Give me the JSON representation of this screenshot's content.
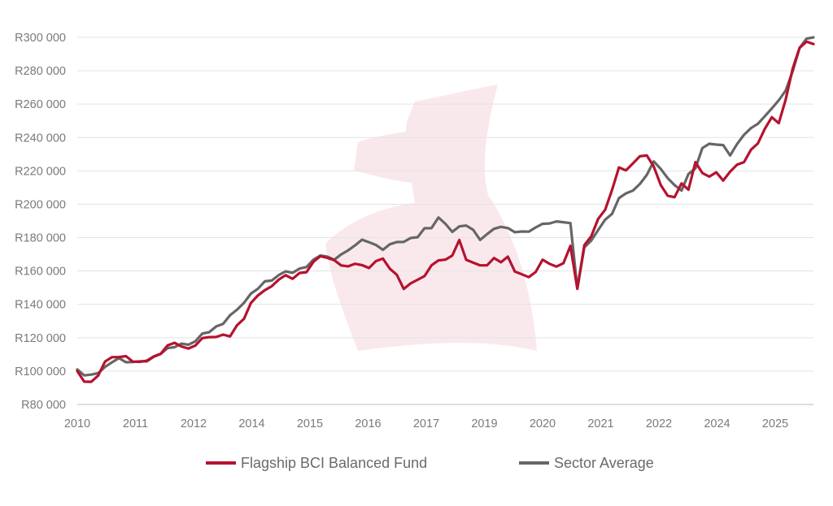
{
  "chart_data": {
    "type": "line",
    "ylim": [
      80000,
      300000
    ],
    "y_ticks": [
      80000,
      100000,
      120000,
      140000,
      160000,
      180000,
      200000,
      220000,
      240000,
      260000,
      280000,
      300000
    ],
    "y_tick_labels": [
      "R80 000",
      "R100 000",
      "R120 000",
      "R140 000",
      "R160 000",
      "R180 000",
      "R200 000",
      "R220 000",
      "R240 000",
      "R260 000",
      "R280 000",
      "R300 000"
    ],
    "x_tick_labels": [
      "2010",
      "2011",
      "2012",
      "2014",
      "2015",
      "2016",
      "2017",
      "2019",
      "2020",
      "2021",
      "2022",
      "2024",
      "2025"
    ],
    "grid": true,
    "legend_position": "bottom",
    "x": [
      0,
      2,
      4,
      6,
      8,
      10,
      12,
      14,
      16,
      18,
      20,
      22,
      24,
      26,
      28,
      30,
      32,
      34,
      36,
      38,
      40,
      42,
      44,
      46,
      48,
      50,
      52,
      54,
      56,
      58,
      60,
      62,
      64,
      66,
      68,
      70,
      72,
      74,
      76,
      78,
      80,
      82,
      84,
      86,
      88,
      90,
      92,
      94,
      96,
      98,
      100,
      102,
      104,
      106,
      108,
      110,
      112,
      114,
      116,
      118,
      120,
      122,
      124,
      126,
      128,
      130,
      132,
      134,
      136,
      138,
      140,
      142,
      144,
      146,
      148,
      150,
      152,
      154,
      156,
      158,
      160,
      162,
      164,
      166,
      168,
      170,
      172,
      174,
      176,
      178,
      180,
      182,
      184,
      186,
      188,
      190,
      192
    ],
    "series": [
      {
        "name": "Flagship BCI Balanced Fund",
        "color": "#b5122f",
        "values": [
          100000,
          94000,
          93000,
          98000,
          105000,
          109000,
          108000,
          109000,
          106000,
          105000,
          107000,
          108000,
          111000,
          115000,
          117000,
          115000,
          113000,
          116000,
          119000,
          121000,
          120000,
          122000,
          121000,
          127000,
          132000,
          140000,
          146000,
          148000,
          151000,
          155000,
          157000,
          156000,
          158000,
          160000,
          165000,
          169000,
          168000,
          166000,
          164000,
          162000,
          165000,
          163000,
          162000,
          166000,
          167000,
          162000,
          157000,
          150000,
          152000,
          155000,
          157000,
          163000,
          167000,
          166000,
          170000,
          178000,
          167000,
          165000,
          163000,
          164000,
          167000,
          166000,
          168000,
          160000,
          158000,
          156000,
          160000,
          166000,
          165000,
          162000,
          165000,
          175000,
          149000,
          176000,
          180000,
          192000,
          196000,
          209000,
          222000,
          220000,
          225000,
          228000,
          230000,
          222000,
          212000,
          205000,
          204000,
          213000,
          208000,
          226000,
          218000,
          217000,
          219000,
          214000,
          220000,
          223000,
          226000
        ],
        "values_tail": [
          232000,
          237000,
          245000,
          252000,
          249000,
          262000,
          282000,
          293000,
          298000,
          296000
        ]
      },
      {
        "name": "Sector Average",
        "color": "#666666",
        "values": [
          101000,
          97000,
          98000,
          99000,
          102000,
          106000,
          107000,
          106000,
          105000,
          106000,
          106000,
          108000,
          111000,
          113000,
          115000,
          116000,
          116000,
          118000,
          122000,
          124000,
          126000,
          129000,
          133000,
          137000,
          141000,
          146000,
          150000,
          153000,
          155000,
          157000,
          160000,
          159000,
          161000,
          163000,
          166000,
          170000,
          168000,
          167000,
          170000,
          172000,
          176000,
          178000,
          178000,
          175000,
          173000,
          176000,
          177000,
          178000,
          179000,
          181000,
          185000,
          186000,
          192000,
          188000,
          184000,
          186000,
          188000,
          184000,
          179000,
          182000,
          185000,
          187000,
          185000,
          184000,
          183000,
          184000,
          186000,
          188000,
          189000,
          189000,
          190000,
          188000,
          150000,
          174000,
          178000,
          185000,
          190000,
          195000,
          203000,
          207000,
          208000,
          212000,
          218000,
          225000,
          222000,
          215000,
          212000,
          208000,
          218000,
          222000,
          233000,
          237000,
          235000,
          236000,
          229000,
          236000,
          242000
        ],
        "values_tail": [
          245000,
          249000,
          252000,
          258000,
          262000,
          268000,
          280000,
          293000,
          300000,
          300000
        ]
      }
    ]
  }
}
